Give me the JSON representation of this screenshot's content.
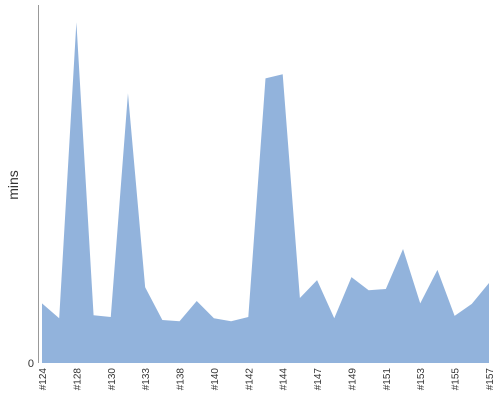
{
  "chart_data": {
    "type": "area",
    "y_label": "mins",
    "categories": [
      "#124",
      null,
      "#128",
      null,
      "#130",
      null,
      "#133",
      null,
      "#138",
      null,
      "#140",
      null,
      "#142",
      null,
      "#144",
      null,
      "#147",
      null,
      "#149",
      null,
      "#151",
      null,
      "#153",
      null,
      "#155",
      null,
      "#157"
    ],
    "values": [
      1.0,
      0.75,
      5.71,
      0.8,
      0.77,
      4.52,
      1.27,
      0.72,
      0.7,
      1.04,
      0.75,
      0.7,
      0.77,
      4.77,
      4.84,
      1.09,
      1.39,
      0.75,
      1.44,
      1.22,
      1.24,
      1.91,
      1.0,
      1.56,
      0.79,
      0.99,
      1.34
    ],
    "color": "#92b3dc",
    "ylim": [
      0,
      6
    ],
    "yticks": [
      0
    ],
    "grid": false
  }
}
